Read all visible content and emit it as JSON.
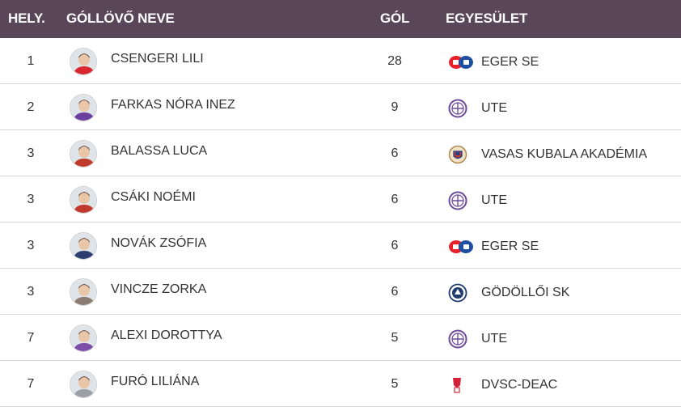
{
  "header": {
    "rank": "HELY.",
    "name": "GÓLLÖVŐ NEVE",
    "goals": "GÓL",
    "club": "EGYESÜLET"
  },
  "players": [
    {
      "rank": "1",
      "name": "CSENGERI LILI",
      "goals": "28",
      "club": "EGER SE",
      "club_logo": "eger-se-logo",
      "avatar_color": "#d9282f"
    },
    {
      "rank": "2",
      "name": "FARKAS NÓRA INEZ",
      "goals": "9",
      "club": "UTE",
      "club_logo": "ute-logo",
      "avatar_color": "#6a3fa0"
    },
    {
      "rank": "3",
      "name": "BALASSA LUCA",
      "goals": "6",
      "club": "VASAS KUBALA AKADÉMIA",
      "club_logo": "vasas-logo",
      "avatar_color": "#c0392b"
    },
    {
      "rank": "3",
      "name": "CSÁKI NOÉMI",
      "goals": "6",
      "club": "UTE",
      "club_logo": "ute-logo",
      "avatar_color": "#c0392b"
    },
    {
      "rank": "3",
      "name": "NOVÁK ZSÓFIA",
      "goals": "6",
      "club": "EGER SE",
      "club_logo": "eger-se-logo",
      "avatar_color": "#2c3e70"
    },
    {
      "rank": "3",
      "name": "VINCZE ZORKA",
      "goals": "6",
      "club": "GÖDÖLLŐI SK",
      "club_logo": "godolloi-sk-logo",
      "avatar_color": "#8a7d70"
    },
    {
      "rank": "7",
      "name": "ALEXI DOROTTYA",
      "goals": "5",
      "club": "UTE",
      "club_logo": "ute-logo",
      "avatar_color": "#7b4fa8"
    },
    {
      "rank": "7",
      "name": "FURÓ LILIÁNA",
      "goals": "5",
      "club": "DVSC-DEAC",
      "club_logo": "dvsc-deac-logo",
      "avatar_color": "#9aa0a6"
    }
  ],
  "colors": {
    "header_bg": "#5a4659",
    "eger_red": "#e8202a",
    "eger_blue": "#1f4fa3",
    "ute_purple": "#6d4b9a",
    "dvsc_red": "#d6203a"
  }
}
